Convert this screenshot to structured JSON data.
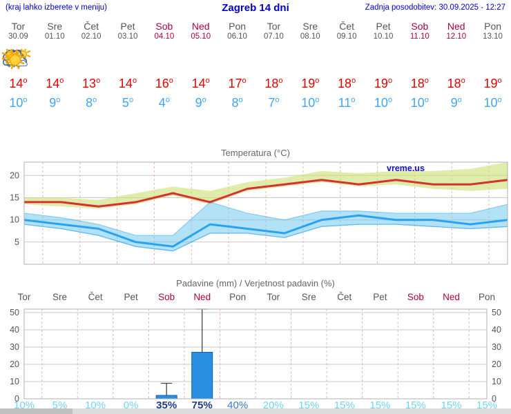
{
  "header": {
    "hint": "(kraj lahko izberete v meniju)",
    "title": "Zagreb 14 dni",
    "updated": "Zadnja posodobitev: 30.09.2025 - 12:27"
  },
  "deg_symbol": "o",
  "days": [
    {
      "name": "Tor",
      "date": "30.09",
      "weekend": false,
      "icon": "cloudy",
      "tmax": 14,
      "tmin": 10
    },
    {
      "name": "Sre",
      "date": "01.10",
      "weekend": false,
      "icon": "partly",
      "tmax": 14,
      "tmin": 9
    },
    {
      "name": "Čet",
      "date": "02.10",
      "weekend": false,
      "icon": "partly",
      "tmax": 13,
      "tmin": 8
    },
    {
      "name": "Pet",
      "date": "03.10",
      "weekend": false,
      "icon": "sunny",
      "tmax": 14,
      "tmin": 5
    },
    {
      "name": "Sob",
      "date": "04.10",
      "weekend": true,
      "icon": "rain",
      "tmax": 16,
      "tmin": 4
    },
    {
      "name": "Ned",
      "date": "05.10",
      "weekend": true,
      "icon": "showers",
      "tmax": 14,
      "tmin": 9
    },
    {
      "name": "Pon",
      "date": "06.10",
      "weekend": false,
      "icon": "partly",
      "tmax": 17,
      "tmin": 8
    },
    {
      "name": "Tor",
      "date": "07.10",
      "weekend": false,
      "icon": "mostly-sunny",
      "tmax": 18,
      "tmin": 7
    },
    {
      "name": "Sre",
      "date": "08.10",
      "weekend": false,
      "icon": "sunny",
      "tmax": 19,
      "tmin": 10
    },
    {
      "name": "Čet",
      "date": "09.10",
      "weekend": false,
      "icon": "sunny",
      "tmax": 18,
      "tmin": 11
    },
    {
      "name": "Pet",
      "date": "10.10",
      "weekend": false,
      "icon": "sunny",
      "tmax": 19,
      "tmin": 10
    },
    {
      "name": "Sob",
      "date": "11.10",
      "weekend": true,
      "icon": "sunny",
      "tmax": 18,
      "tmin": 10
    },
    {
      "name": "Ned",
      "date": "12.10",
      "weekend": true,
      "icon": "sunny",
      "tmax": 18,
      "tmin": 9
    },
    {
      "name": "Pon",
      "date": "13.10",
      "weekend": false,
      "icon": "sunny",
      "tmax": 19,
      "tmin": 10
    }
  ],
  "chart_data": [
    {
      "type": "line",
      "title": "Temperatura (°C)",
      "watermark": "vreme.us",
      "categories": [
        "30.09",
        "01.10",
        "02.10",
        "03.10",
        "04.10",
        "05.10",
        "06.10",
        "07.10",
        "08.10",
        "09.10",
        "10.10",
        "11.10",
        "12.10",
        "13.10"
      ],
      "ylim": [
        0,
        23
      ],
      "yticks": [
        5,
        10,
        15,
        20
      ],
      "grid": true,
      "series": [
        {
          "name": "max temperature",
          "values": [
            14,
            14,
            13,
            14,
            16,
            14,
            17,
            18,
            19,
            18,
            19,
            18,
            18,
            19
          ]
        },
        {
          "name": "max band upper",
          "values": [
            15,
            15,
            14.5,
            16,
            17.5,
            16.5,
            18.5,
            19.5,
            21,
            20.5,
            21,
            21,
            21.5,
            23
          ]
        },
        {
          "name": "max band lower",
          "values": [
            13.5,
            13,
            12.5,
            13.5,
            15.5,
            13.5,
            16.5,
            17.5,
            18.5,
            17.5,
            18,
            17,
            16.5,
            17
          ]
        },
        {
          "name": "min temperature",
          "values": [
            10,
            9,
            8,
            5,
            4,
            9,
            8,
            7,
            10,
            11,
            10,
            10,
            9,
            10
          ]
        },
        {
          "name": "min band upper",
          "values": [
            11.5,
            10.5,
            9,
            6.5,
            6.5,
            14,
            11.5,
            10,
            12,
            12,
            11.5,
            11.5,
            11.5,
            13.5
          ]
        },
        {
          "name": "min band lower",
          "values": [
            9,
            8,
            6.5,
            4,
            3,
            7,
            7,
            6,
            8.5,
            9,
            9,
            8.5,
            8,
            8.5
          ]
        }
      ]
    },
    {
      "type": "bar",
      "title": "Padavine (mm) / Verjetnost padavin (%)",
      "categories": [
        "Tor",
        "Sre",
        "Čet",
        "Pet",
        "Sob",
        "Ned",
        "Pon",
        "Tor",
        "Sre",
        "Čet",
        "Pet",
        "Sob",
        "Ned",
        "Pon"
      ],
      "values": [
        0,
        0,
        0,
        0,
        2,
        27,
        0,
        0,
        0,
        0,
        0,
        0,
        0,
        0
      ],
      "whisker_high": [
        0,
        0,
        0,
        0,
        9,
        52,
        0,
        0,
        0,
        0,
        0,
        0,
        0,
        0
      ],
      "probabilities": [
        "10%",
        "5%",
        "10%",
        "0%",
        "35%",
        "75%",
        "40%",
        "20%",
        "15%",
        "15%",
        "15%",
        "15%",
        "15%",
        "15%"
      ],
      "probability_levels": [
        "light",
        "light",
        "light",
        "light",
        "dark",
        "dark",
        "medium",
        "light",
        "light",
        "light",
        "light",
        "light",
        "light",
        "light"
      ],
      "ylim": [
        0,
        52
      ],
      "yticks": [
        0,
        10,
        20,
        30,
        40,
        50
      ],
      "grid": true
    }
  ],
  "colors": {
    "header_blue": "#0000cc",
    "weekend_red": "#b00040",
    "day_gray": "#555555",
    "tmax_red": "#e60000",
    "tmin_blue": "#3fa5f5",
    "line_max": "#d63031",
    "band_max": "#ccdf70",
    "line_min": "#29a3ef",
    "band_min": "#74c9ef",
    "bar_fill": "#2a8fe0",
    "bar_stroke": "#1060b0",
    "whisker": "#444444",
    "pop_light": "#6fd4f4",
    "pop_medium": "#3c7cc4",
    "pop_dark": "#1d3b8a"
  }
}
